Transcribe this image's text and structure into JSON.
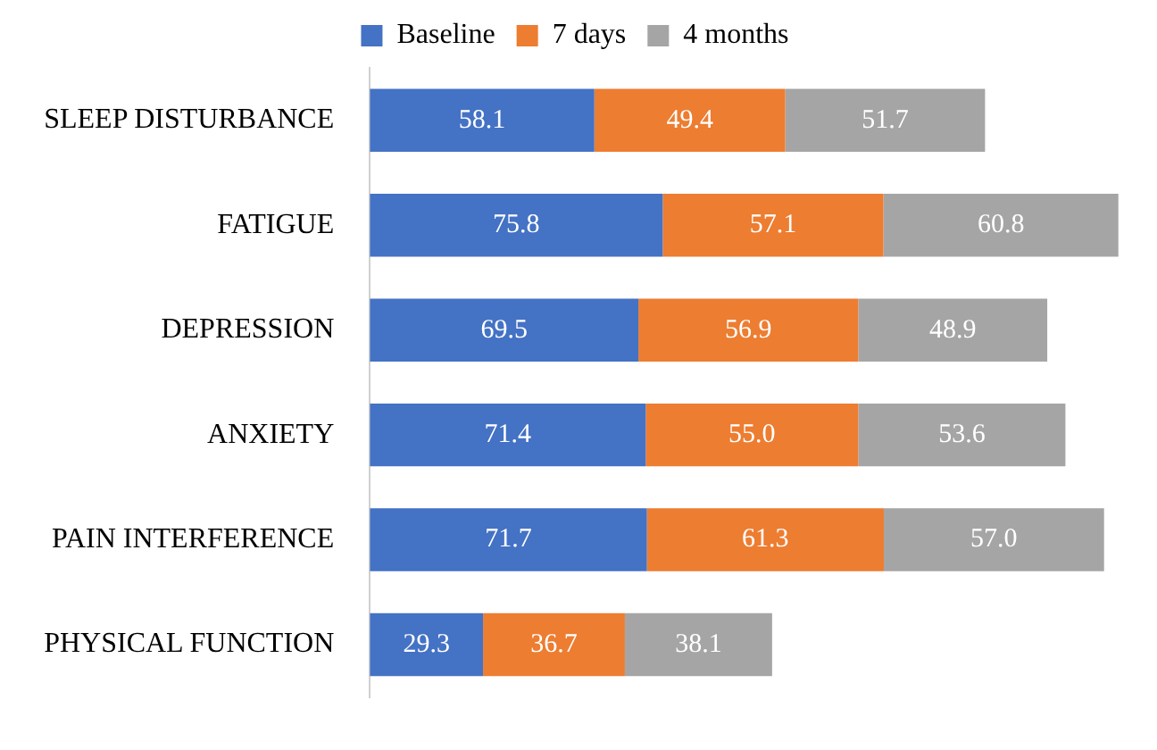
{
  "chart_data": {
    "type": "bar",
    "orientation": "horizontal",
    "stacked": true,
    "legend": "top",
    "tick_labels": "y",
    "grid": false,
    "categories": [
      "SLEEP DISTURBANCE",
      "FATIGUE",
      "DEPRESSION",
      "ANXIETY",
      "PAIN INTERFERENCE",
      "PHYSICAL FUNCTION"
    ],
    "series": [
      {
        "name": "Baseline",
        "color": "#4472c4",
        "values": [
          58.1,
          75.8,
          69.5,
          71.4,
          71.7,
          29.3
        ],
        "value_labels": [
          "58.1",
          "75.8",
          "69.5",
          "71.4",
          "71.7",
          "29.3"
        ]
      },
      {
        "name": "7 days",
        "color": "#ed7d31",
        "values": [
          49.4,
          57.1,
          56.9,
          55.0,
          61.3,
          36.7
        ],
        "value_labels": [
          "49.4",
          "57.1",
          "56.9",
          "55.0",
          "61.3",
          "36.7"
        ]
      },
      {
        "name": "4 months",
        "color": "#a5a5a5",
        "values": [
          51.7,
          60.8,
          48.9,
          53.6,
          57.0,
          38.1
        ],
        "value_labels": [
          "51.7",
          "60.8",
          "48.9",
          "53.6",
          "57.0",
          "38.1"
        ]
      }
    ]
  }
}
